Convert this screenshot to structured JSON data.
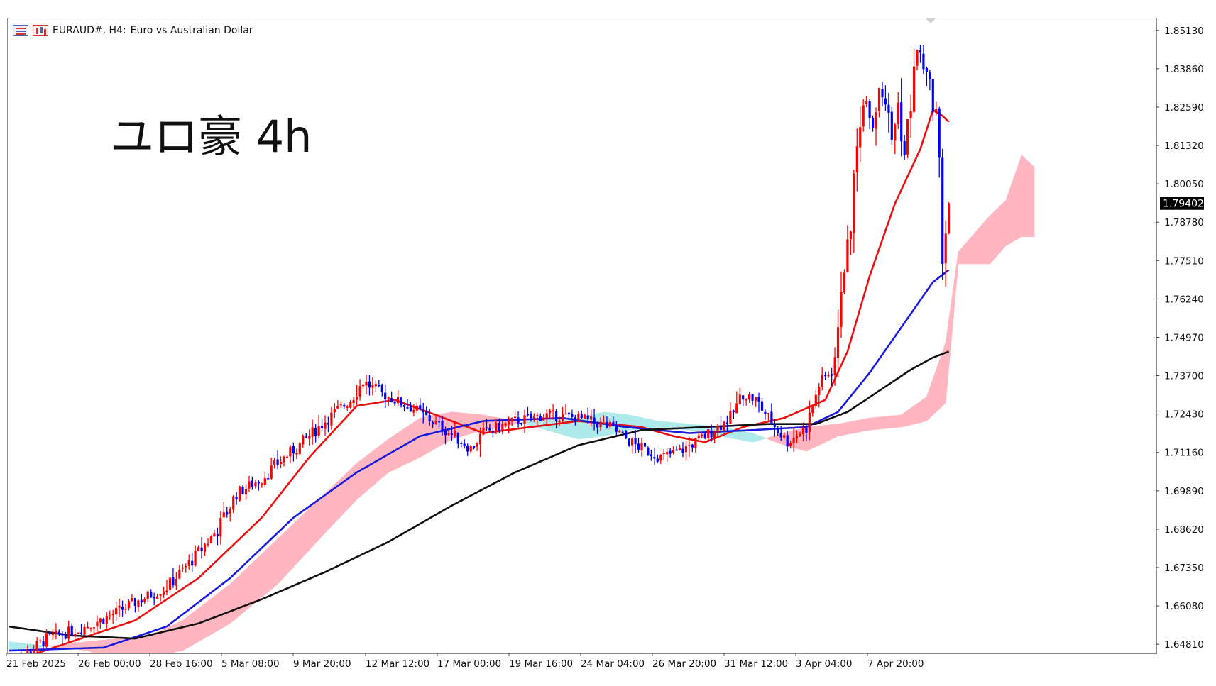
{
  "header": {
    "symbol_label": "EURAUD#, H4:",
    "description": "Euro vs Australian Dollar",
    "icons": [
      "list-icon",
      "bar-chart-icon"
    ]
  },
  "annotation": "ユロ豪 4h",
  "current_price": "1.79402",
  "colors": {
    "bull_candle": "#ff0000",
    "bear_candle": "#0000ff",
    "ma_fast": "#e81010",
    "ma_mid": "#1a1adc",
    "ma_slow": "#111111",
    "cloud_bull": "#ffb6c1",
    "cloud_bear": "#aeeaea",
    "price_tag_bg": "#000000"
  },
  "chart_data": {
    "type": "candlestick",
    "timeframe": "H4",
    "price_axis_labels": [
      "1.85130",
      "1.83860",
      "1.82590",
      "1.81320",
      "1.80050",
      "1.78780",
      "1.77510",
      "1.76240",
      "1.74970",
      "1.73700",
      "1.72430",
      "1.71160",
      "1.69890",
      "1.68620",
      "1.67350",
      "1.66080",
      "1.64810"
    ],
    "time_axis_labels": [
      "21 Feb 2025",
      "26 Feb 00:00",
      "28 Feb 16:00",
      "5 Mar 08:00",
      "9 Mar 20:00",
      "12 Mar 12:00",
      "17 Mar 00:00",
      "19 Mar 16:00",
      "24 Mar 04:00",
      "26 Mar 20:00",
      "31 Mar 12:00",
      "3 Apr 04:00",
      "7 Apr 20:00"
    ],
    "ylim": [
      1.6364,
      1.859
    ],
    "close_anchors": [
      [
        0,
        1.64
      ],
      [
        12,
        1.65
      ],
      [
        22,
        1.653
      ],
      [
        32,
        1.6575
      ],
      [
        40,
        1.662
      ],
      [
        50,
        1.667
      ],
      [
        58,
        1.676
      ],
      [
        66,
        1.686
      ],
      [
        72,
        1.698
      ],
      [
        80,
        1.703
      ],
      [
        86,
        1.709
      ],
      [
        92,
        1.714
      ],
      [
        100,
        1.722
      ],
      [
        108,
        1.729
      ],
      [
        112,
        1.735
      ],
      [
        118,
        1.731
      ],
      [
        128,
        1.726
      ],
      [
        138,
        1.719
      ],
      [
        146,
        1.713
      ],
      [
        150,
        1.718
      ],
      [
        160,
        1.722
      ],
      [
        170,
        1.724
      ],
      [
        180,
        1.723
      ],
      [
        190,
        1.72
      ],
      [
        198,
        1.714
      ],
      [
        206,
        1.71
      ],
      [
        212,
        1.712
      ],
      [
        220,
        1.717
      ],
      [
        228,
        1.723
      ],
      [
        232,
        1.731
      ],
      [
        236,
        1.729
      ],
      [
        240,
        1.723
      ],
      [
        246,
        1.715
      ],
      [
        252,
        1.72
      ],
      [
        256,
        1.734
      ],
      [
        260,
        1.739
      ],
      [
        262,
        1.748
      ],
      [
        263,
        1.769
      ],
      [
        265,
        1.778
      ],
      [
        267,
        1.8
      ],
      [
        269,
        1.823
      ],
      [
        271,
        1.83
      ],
      [
        273,
        1.82
      ],
      [
        275,
        1.833
      ],
      [
        277,
        1.828
      ],
      [
        279,
        1.815
      ],
      [
        281,
        1.827
      ],
      [
        283,
        1.81
      ],
      [
        285,
        1.828
      ],
      [
        287,
        1.845
      ],
      [
        289,
        1.84
      ],
      [
        291,
        1.832
      ],
      [
        293,
        1.823
      ],
      [
        294,
        1.802
      ],
      [
        295,
        1.777
      ],
      [
        297,
        1.794
      ]
    ],
    "moving_averages": [
      {
        "name": "MA fast",
        "color": "#e81010",
        "anchors": [
          [
            0,
            1.642
          ],
          [
            20,
            1.649
          ],
          [
            40,
            1.656
          ],
          [
            60,
            1.67
          ],
          [
            80,
            1.69
          ],
          [
            95,
            1.71
          ],
          [
            110,
            1.727
          ],
          [
            122,
            1.729
          ],
          [
            135,
            1.724
          ],
          [
            150,
            1.718
          ],
          [
            165,
            1.72
          ],
          [
            180,
            1.722
          ],
          [
            200,
            1.72
          ],
          [
            210,
            1.717
          ],
          [
            220,
            1.715
          ],
          [
            232,
            1.72
          ],
          [
            245,
            1.723
          ],
          [
            258,
            1.729
          ],
          [
            265,
            1.745
          ],
          [
            272,
            1.77
          ],
          [
            280,
            1.794
          ],
          [
            288,
            1.812
          ],
          [
            292,
            1.825
          ],
          [
            295,
            1.823
          ],
          [
            297,
            1.821
          ]
        ]
      },
      {
        "name": "MA mid",
        "color": "#1a1adc",
        "anchors": [
          [
            0,
            1.646
          ],
          [
            30,
            1.647
          ],
          [
            50,
            1.654
          ],
          [
            70,
            1.67
          ],
          [
            90,
            1.69
          ],
          [
            110,
            1.705
          ],
          [
            130,
            1.717
          ],
          [
            150,
            1.722
          ],
          [
            175,
            1.723
          ],
          [
            195,
            1.72
          ],
          [
            215,
            1.718
          ],
          [
            235,
            1.719
          ],
          [
            252,
            1.72
          ],
          [
            262,
            1.725
          ],
          [
            272,
            1.738
          ],
          [
            282,
            1.753
          ],
          [
            292,
            1.768
          ],
          [
            297,
            1.772
          ]
        ]
      },
      {
        "name": "MA slow",
        "color": "#111111",
        "anchors": [
          [
            0,
            1.654
          ],
          [
            20,
            1.651
          ],
          [
            40,
            1.65
          ],
          [
            60,
            1.655
          ],
          [
            80,
            1.663
          ],
          [
            100,
            1.672
          ],
          [
            120,
            1.682
          ],
          [
            140,
            1.694
          ],
          [
            160,
            1.705
          ],
          [
            180,
            1.714
          ],
          [
            200,
            1.719
          ],
          [
            220,
            1.72
          ],
          [
            240,
            1.721
          ],
          [
            255,
            1.721
          ],
          [
            265,
            1.725
          ],
          [
            275,
            1.732
          ],
          [
            285,
            1.739
          ],
          [
            292,
            1.743
          ],
          [
            297,
            1.745
          ]
        ]
      }
    ],
    "ichimoku_cloud": {
      "span_a": [
        [
          0,
          1.646
        ],
        [
          25,
          1.649
        ],
        [
          35,
          1.65
        ],
        [
          45,
          1.651
        ],
        [
          55,
          1.656
        ],
        [
          70,
          1.668
        ],
        [
          85,
          1.683
        ],
        [
          100,
          1.698
        ],
        [
          110,
          1.708
        ],
        [
          120,
          1.716
        ],
        [
          130,
          1.723
        ],
        [
          140,
          1.725
        ],
        [
          150,
          1.724
        ],
        [
          160,
          1.722
        ],
        [
          170,
          1.719
        ],
        [
          180,
          1.716
        ],
        [
          188,
          1.717
        ],
        [
          196,
          1.719
        ],
        [
          205,
          1.72
        ],
        [
          215,
          1.719
        ],
        [
          225,
          1.717
        ],
        [
          235,
          1.715
        ],
        [
          245,
          1.718
        ],
        [
          252,
          1.72
        ],
        [
          262,
          1.721
        ],
        [
          272,
          1.723
        ],
        [
          282,
          1.724
        ],
        [
          290,
          1.73
        ],
        [
          296,
          1.748
        ],
        [
          300,
          1.778
        ],
        [
          305,
          1.784
        ],
        [
          310,
          1.79
        ],
        [
          315,
          1.795
        ],
        [
          320,
          1.81
        ],
        [
          324,
          1.806
        ]
      ],
      "span_b": [
        [
          0,
          1.649
        ],
        [
          25,
          1.646
        ],
        [
          35,
          1.642
        ],
        [
          45,
          1.644
        ],
        [
          55,
          1.646
        ],
        [
          70,
          1.655
        ],
        [
          85,
          1.668
        ],
        [
          100,
          1.685
        ],
        [
          110,
          1.696
        ],
        [
          120,
          1.705
        ],
        [
          130,
          1.71
        ],
        [
          140,
          1.716
        ],
        [
          150,
          1.719
        ],
        [
          160,
          1.721
        ],
        [
          170,
          1.723
        ],
        [
          180,
          1.723
        ],
        [
          188,
          1.725
        ],
        [
          196,
          1.724
        ],
        [
          205,
          1.722
        ],
        [
          215,
          1.721
        ],
        [
          225,
          1.72
        ],
        [
          235,
          1.718
        ],
        [
          245,
          1.714
        ],
        [
          252,
          1.712
        ],
        [
          262,
          1.717
        ],
        [
          272,
          1.719
        ],
        [
          282,
          1.72
        ],
        [
          290,
          1.722
        ],
        [
          296,
          1.728
        ],
        [
          300,
          1.774
        ],
        [
          305,
          1.774
        ],
        [
          310,
          1.774
        ],
        [
          315,
          1.78
        ],
        [
          320,
          1.783
        ],
        [
          324,
          1.783
        ]
      ]
    }
  }
}
